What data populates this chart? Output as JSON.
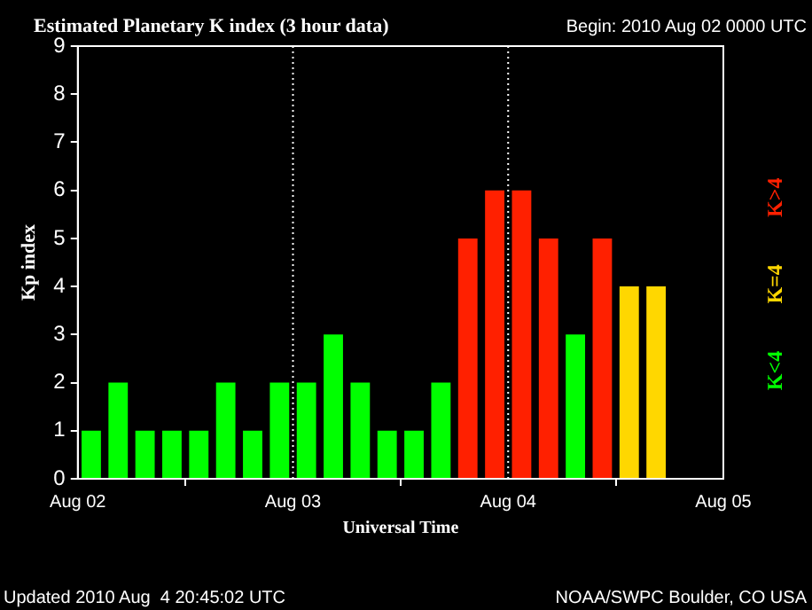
{
  "chart_data": {
    "type": "bar",
    "title": "Estimated Planetary K index (3 hour data)",
    "subtitle": "Begin: 2010 Aug 02 0000 UTC",
    "xlabel": "Universal Time",
    "ylabel": "Kp index",
    "x": [
      "2010-08-02T01:30",
      "2010-08-02T04:30",
      "2010-08-02T07:30",
      "2010-08-02T10:30",
      "2010-08-02T13:30",
      "2010-08-02T16:30",
      "2010-08-02T19:30",
      "2010-08-02T22:30",
      "2010-08-03T01:30",
      "2010-08-03T04:30",
      "2010-08-03T07:30",
      "2010-08-03T10:30",
      "2010-08-03T13:30",
      "2010-08-03T16:30",
      "2010-08-03T19:30",
      "2010-08-03T22:30",
      "2010-08-04T01:30",
      "2010-08-04T04:30",
      "2010-08-04T07:30",
      "2010-08-04T10:30",
      "2010-08-04T13:30",
      "2010-08-04T16:30"
    ],
    "series": [
      {
        "name": "K<4",
        "color": "#00ff00",
        "values": [
          1,
          2,
          1,
          1,
          1,
          2,
          1,
          2,
          2,
          3,
          2,
          1,
          1,
          2,
          null,
          null,
          null,
          null,
          3,
          null,
          null,
          null
        ]
      },
      {
        "name": "K=4",
        "color": "#ffd700",
        "values": [
          null,
          null,
          null,
          null,
          null,
          null,
          null,
          null,
          null,
          null,
          null,
          null,
          null,
          null,
          null,
          null,
          null,
          null,
          null,
          null,
          4,
          4
        ]
      },
      {
        "name": "K>4",
        "color": "#ff2000",
        "values": [
          null,
          null,
          null,
          null,
          null,
          null,
          null,
          null,
          null,
          null,
          null,
          null,
          null,
          null,
          5,
          6,
          6,
          5,
          null,
          5,
          null,
          null
        ]
      }
    ],
    "xlim": [
      "2010-08-02",
      "2010-08-05"
    ],
    "xticks": [
      {
        "value": "2010-08-02",
        "label": "Aug 02"
      },
      {
        "value": "2010-08-03",
        "label": "Aug 03"
      },
      {
        "value": "2010-08-04",
        "label": "Aug 04"
      },
      {
        "value": "2010-08-05",
        "label": "Aug 05"
      }
    ],
    "ylim": [
      0,
      9
    ],
    "yticks": [
      0,
      1,
      2,
      3,
      4,
      5,
      6,
      7,
      8,
      9
    ],
    "ref_lines": [
      {
        "axis": "x",
        "value": "2010-08-03",
        "color": "#ffffff",
        "line_style": "dotted"
      },
      {
        "axis": "x",
        "value": "2010-08-04",
        "color": "#ffffff",
        "line_style": "dotted"
      }
    ],
    "legend": "right",
    "grid": false,
    "annotations": [
      "Updated 2010 Aug  4 20:45:02 UTC",
      "NOAA/SWPC Boulder, CO USA"
    ]
  }
}
